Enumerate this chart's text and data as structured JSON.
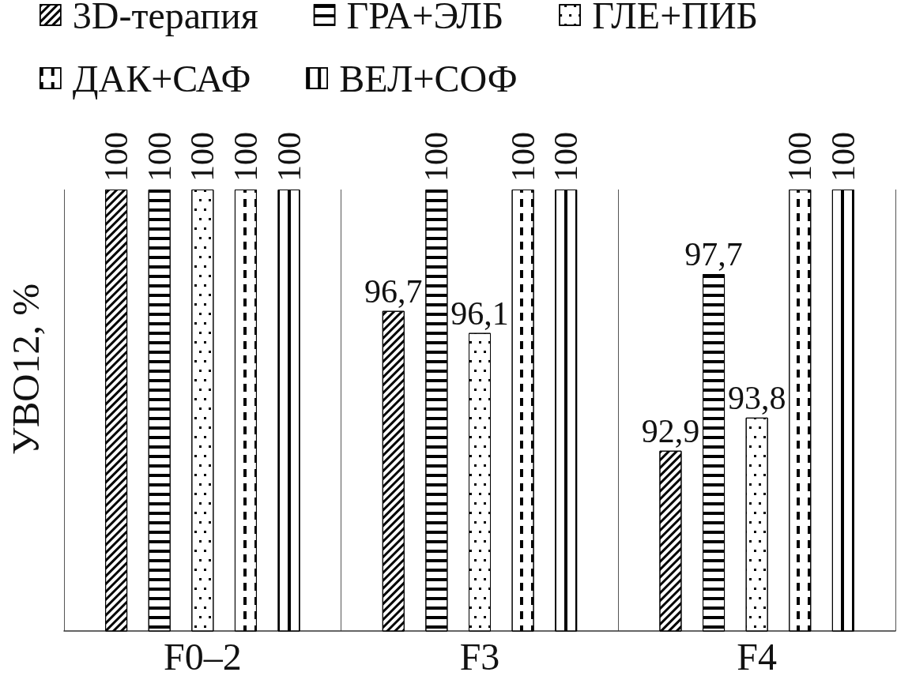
{
  "chart_data": {
    "type": "bar",
    "ylabel": "УВО12, %",
    "categories": [
      "F0–2",
      "F3",
      "F4"
    ],
    "series": [
      {
        "name": "3D-терапия",
        "color": "#000000",
        "values": [
          100,
          96.7,
          92.9
        ],
        "value_labels": [
          "100",
          "96,7",
          "92,9"
        ]
      },
      {
        "name": "ГРА+ЭЛБ",
        "color": "#000000",
        "values": [
          100,
          100,
          97.7
        ],
        "value_labels": [
          "100",
          "100",
          "97,7"
        ]
      },
      {
        "name": "ГЛЕ+ПИБ",
        "color": "#000000",
        "values": [
          100,
          96.1,
          93.8
        ],
        "value_labels": [
          "100",
          "96,1",
          "93,8"
        ]
      },
      {
        "name": "ДАК+САФ",
        "color": "#000000",
        "values": [
          100,
          100,
          100
        ],
        "value_labels": [
          "100",
          "100",
          "100"
        ]
      },
      {
        "name": "ВЕЛ+СОФ",
        "color": "#000000",
        "values": [
          100,
          100,
          100
        ],
        "value_labels": [
          "100",
          "100",
          "100"
        ]
      }
    ],
    "ylim": [
      88,
      100
    ],
    "tick_labels": "x",
    "grid": "x",
    "legend": "top"
  }
}
